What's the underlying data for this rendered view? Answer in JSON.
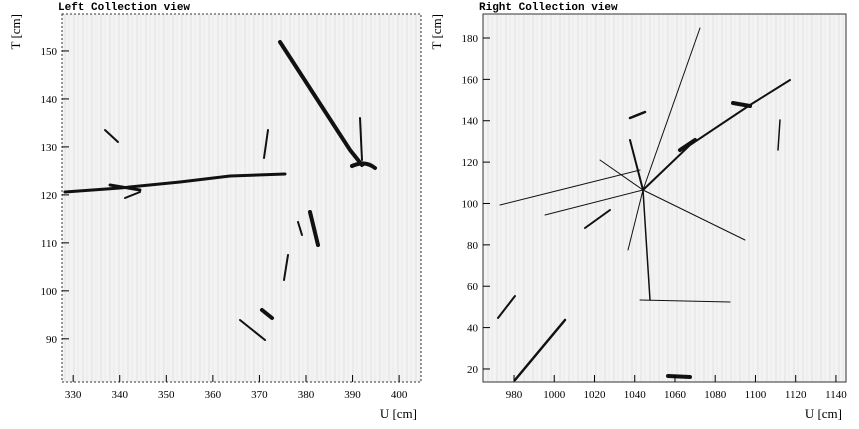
{
  "chart_data": [
    {
      "type": "image",
      "title": "Left Collection view",
      "x_label": "U [cm]",
      "y_label": "T [cm]",
      "xlim": [
        327.6,
        404.7
      ],
      "xticks": [
        330,
        340,
        350,
        360,
        370,
        380,
        390,
        400
      ],
      "ylim": [
        81,
        157.7
      ],
      "yticks": [
        90,
        100,
        110,
        120,
        130,
        140,
        150
      ]
    },
    {
      "type": "image",
      "title": "Right Collection view",
      "x_label": "U [cm]",
      "y_label": "T [cm]",
      "xlim": [
        964.6,
        1145
      ],
      "xticks": [
        980,
        1000,
        1020,
        1040,
        1060,
        1080,
        1100,
        1120,
        1140
      ],
      "ylim": [
        13.7,
        191.6
      ],
      "yticks": [
        20,
        40,
        60,
        80,
        100,
        120,
        140,
        160,
        180
      ]
    }
  ]
}
